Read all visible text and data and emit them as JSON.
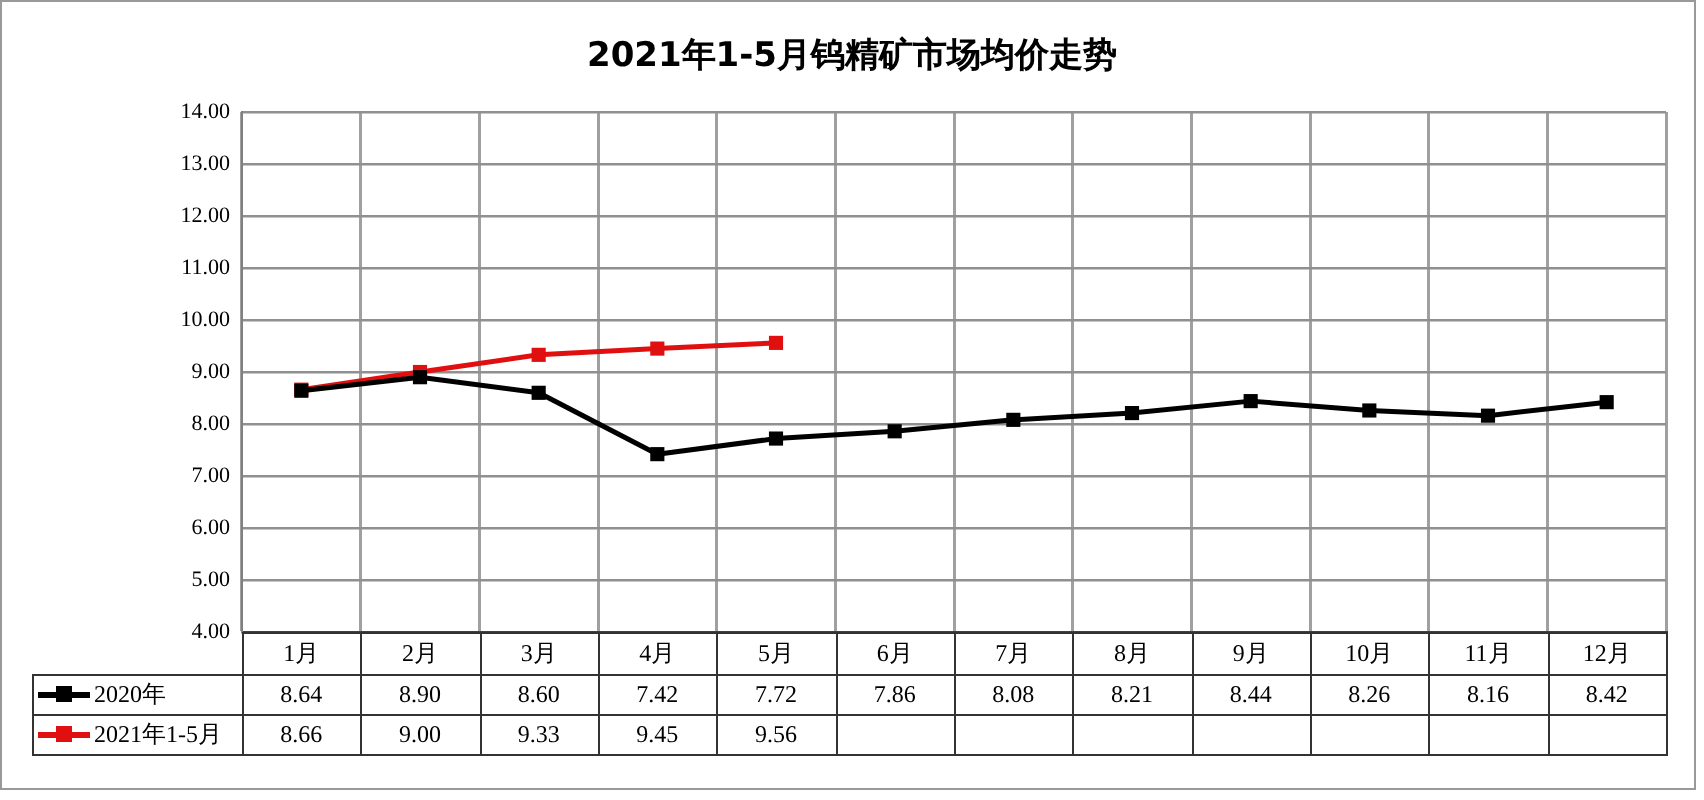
{
  "chart_data": {
    "type": "line",
    "title": "2021年1-5月钨精矿市场均价走势",
    "categories": [
      "1月",
      "2月",
      "3月",
      "4月",
      "5月",
      "6月",
      "7月",
      "8月",
      "9月",
      "10月",
      "11月",
      "12月"
    ],
    "series": [
      {
        "name": "2020年",
        "color": "#000000",
        "values": [
          8.64,
          8.9,
          8.6,
          7.42,
          7.72,
          7.86,
          8.08,
          8.21,
          8.44,
          8.26,
          8.16,
          8.42
        ],
        "value_labels": [
          "8.64",
          "8.90",
          "8.60",
          "7.42",
          "7.72",
          "7.86",
          "8.08",
          "8.21",
          "8.44",
          "8.26",
          "8.16",
          "8.42"
        ]
      },
      {
        "name": "2021年1-5月",
        "color": "#e01010",
        "values": [
          8.66,
          9.0,
          9.33,
          9.45,
          9.56,
          null,
          null,
          null,
          null,
          null,
          null,
          null
        ],
        "value_labels": [
          "8.66",
          "9.00",
          "9.33",
          "9.45",
          "9.56",
          null,
          null,
          null,
          null,
          null,
          null,
          null
        ]
      }
    ],
    "ylim": [
      4,
      14
    ],
    "yticks": [
      {
        "value": 4,
        "label": "4.00"
      },
      {
        "value": 5,
        "label": "5.00"
      },
      {
        "value": 6,
        "label": "6.00"
      },
      {
        "value": 7,
        "label": "7.00"
      },
      {
        "value": 8,
        "label": "8.00"
      },
      {
        "value": 9,
        "label": "9.00"
      },
      {
        "value": 10,
        "label": "10.00"
      },
      {
        "value": 11,
        "label": "11.00"
      },
      {
        "value": 12,
        "label": "12.00"
      },
      {
        "value": 13,
        "label": "13.00"
      },
      {
        "value": 14,
        "label": "14.00"
      }
    ],
    "grid": true,
    "legend": "bottom",
    "marker": "square"
  }
}
